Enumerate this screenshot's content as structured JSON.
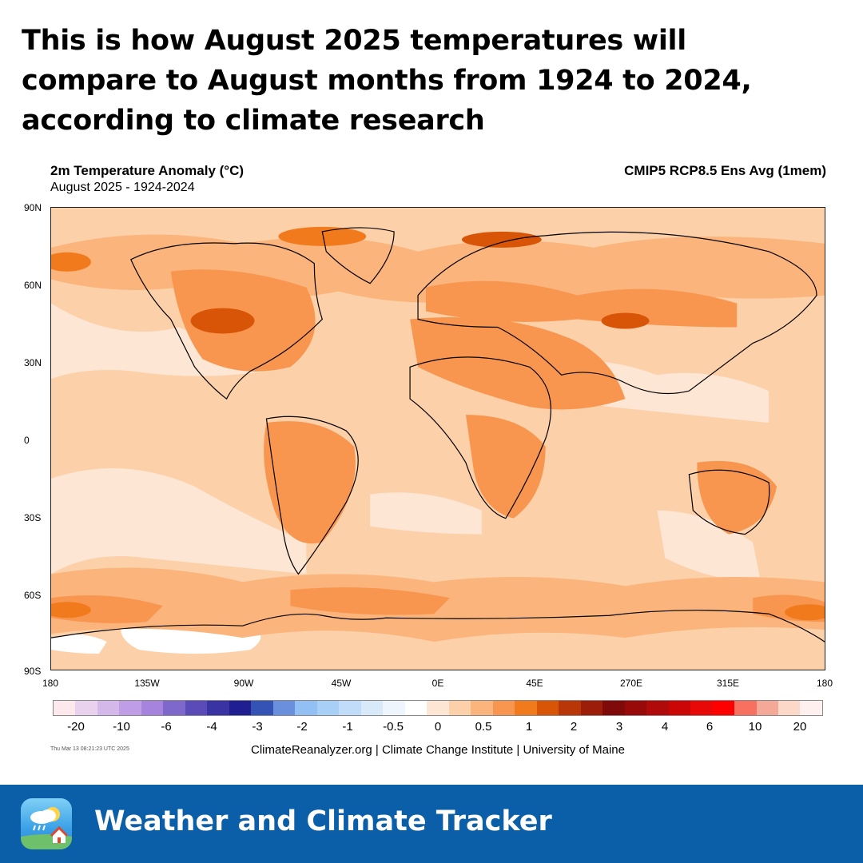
{
  "headline": "This is how August 2025 temperatures will compare to August months from 1924 to 2024, according to climate research",
  "map": {
    "title": "2m Temperature Anomaly (°C)",
    "subtitle": "August 2025 - 1924-2024",
    "model": "CMIP5 RCP8.5 Ens Avg (1mem)",
    "lat_labels": [
      "90N",
      "60N",
      "30N",
      "0",
      "30S",
      "60S",
      "90S"
    ],
    "lon_labels": [
      "180",
      "135W",
      "90W",
      "45W",
      "0E",
      "45E",
      "270E",
      "315E",
      "180"
    ]
  },
  "legend": {
    "colors": [
      "#fde8ee",
      "#e8d2ee",
      "#d5b8ea",
      "#c09ee6",
      "#a684de",
      "#7f68cc",
      "#5a4bb8",
      "#3a33a4",
      "#1f1f92",
      "#3453b4",
      "#6a8fdc",
      "#92c0f4",
      "#a8cff6",
      "#c0dcf8",
      "#d8eafa",
      "#eef5fc",
      "#ffffff",
      "#fde6d4",
      "#fcd0a8",
      "#fab47c",
      "#f89650",
      "#f07a1c",
      "#d85406",
      "#b83608",
      "#9c1e08",
      "#800a0a",
      "#980a0a",
      "#b00a0a",
      "#cc0606",
      "#e80808",
      "#ff0000",
      "#f87060",
      "#f4a898",
      "#fcd8c8",
      "#fdf0ee"
    ],
    "labels": [
      "-20",
      "-10",
      "-6",
      "-4",
      "-3",
      "-2",
      "-1",
      "-0.5",
      "0",
      "0.5",
      "1",
      "2",
      "3",
      "4",
      "6",
      "10",
      "20"
    ]
  },
  "timestamp": "Thu Mar 13 08:21:23 UTC 2025",
  "credit": "ClimateReanalyzer.org | Climate Change Institute | University of Maine",
  "footer": {
    "title": "Weather and Climate Tracker"
  }
}
